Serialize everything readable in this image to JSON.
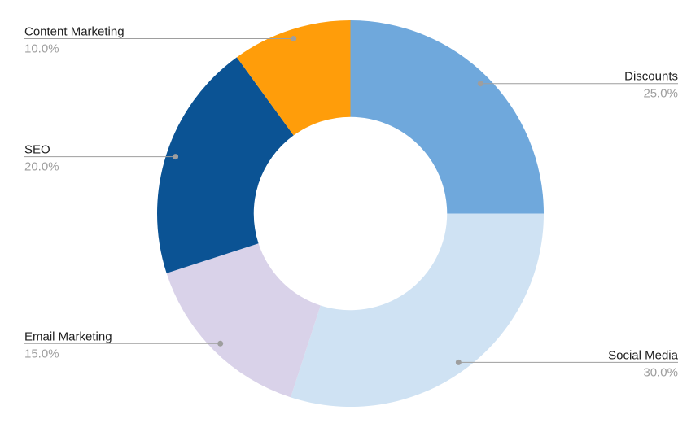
{
  "chart_data": {
    "type": "pie",
    "subtype": "donut",
    "title": "",
    "labels": [
      "Discounts",
      "Social Media",
      "Email Marketing",
      "SEO",
      "Content Marketing"
    ],
    "values": [
      25.0,
      30.0,
      15.0,
      20.0,
      10.0
    ],
    "percent_labels": [
      "25.0%",
      "30.0%",
      "15.0%",
      "20.0%",
      "10.0%"
    ],
    "colors": [
      "#6fa8dc",
      "#cfe2f3",
      "#d9d2e9",
      "#0b5394",
      "#ff9d0a"
    ],
    "start_angle_deg": 0,
    "direction": "clockwise",
    "inner_radius_ratio": 0.5,
    "legend_position": "outside-callouts",
    "label_color": "#212121",
    "percent_color": "#9e9e9e",
    "callout_line_color": "#9e9e9e",
    "callout_dot_color": "#9e9e9e",
    "background": "#ffffff"
  }
}
